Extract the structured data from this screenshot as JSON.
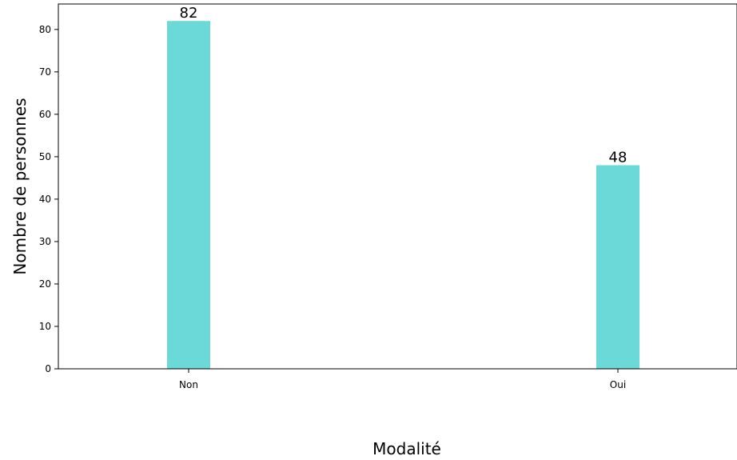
{
  "chart_data": {
    "type": "bar",
    "categories": [
      "Non",
      "Oui"
    ],
    "values": [
      82,
      48
    ],
    "data_labels": [
      "82",
      "48"
    ],
    "title": "",
    "xlabel": "Modalité",
    "ylabel": "Nombre de personnes",
    "ylim": [
      0,
      86
    ],
    "yticks": [
      0,
      10,
      20,
      30,
      40,
      50,
      60,
      70,
      80
    ],
    "ytick_labels": [
      "0",
      "10",
      "20",
      "30",
      "40",
      "50",
      "60",
      "70",
      "80"
    ],
    "grid": false,
    "legend": "none",
    "bar_color": "#6ad9d8"
  }
}
